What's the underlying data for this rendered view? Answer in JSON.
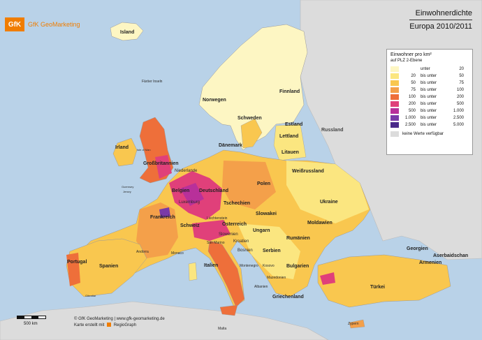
{
  "logo": {
    "mark": "GfK",
    "name": "GfK GeoMarketing"
  },
  "title": {
    "line1": "Einwohnerdichte",
    "line2": "Europa 2010/2011"
  },
  "legend": {
    "title": "Einwohner pro km²",
    "subtitle": "auf PLZ 2-Ebene",
    "classes": [
      {
        "from": "",
        "rel": "unter",
        "to": "20",
        "color": "#fdf6c3"
      },
      {
        "from": "20",
        "rel": "bis unter",
        "to": "50",
        "color": "#fbe680"
      },
      {
        "from": "50",
        "rel": "bis unter",
        "to": "75",
        "color": "#f9c74f"
      },
      {
        "from": "75",
        "rel": "bis unter",
        "to": "100",
        "color": "#f4a04a"
      },
      {
        "from": "100",
        "rel": "bis unter",
        "to": "200",
        "color": "#ee6f3a"
      },
      {
        "from": "200",
        "rel": "bis unter",
        "to": "500",
        "color": "#e0407a"
      },
      {
        "from": "500",
        "rel": "bis unter",
        "to": "1.000",
        "color": "#b8309a"
      },
      {
        "from": "1.000",
        "rel": "bis unter",
        "to": "2.500",
        "color": "#7a3aa8"
      },
      {
        "from": "2.500",
        "rel": "bis unter",
        "to": "5.000",
        "color": "#4b2a8a"
      }
    ],
    "no_data": "keine Werte verfügbar"
  },
  "labels": {
    "island": "Island",
    "faeroer": "Färöer Inseln",
    "norwegen": "Norwegen",
    "schweden": "Schweden",
    "finnland": "Finnland",
    "estland": "Estland",
    "lettland": "Lettland",
    "litauen": "Litauen",
    "russland": "Russland",
    "daenemark": "Dänemark",
    "irland": "Irland",
    "isle_of_man": "Isle of Man",
    "grossbritannien": "Großbritannien",
    "niederlande": "Niederlande",
    "weissrussland": "Weißrussland",
    "belgien": "Belgien",
    "deutschland": "Deutschland",
    "polen": "Polen",
    "luxemburg": "Luxemburg",
    "tschechien": "Tschechien",
    "slowakei": "Slowakei",
    "ukraine": "Ukraine",
    "guernsey": "Guernsey",
    "jersey": "Jersey",
    "frankreich": "Frankreich",
    "liechtenstein": "Liechtenstein",
    "oesterreich": "Österreich",
    "schweiz": "Schweiz",
    "ungarn": "Ungarn",
    "moldawien": "Moldawien",
    "slowenien": "Slowenien",
    "kroatien": "Kroatien",
    "rumaenien": "Rumänien",
    "san_marino": "San Marino",
    "bosnien": "Bosnien",
    "serbien": "Serbien",
    "andorra": "Andorra",
    "monaco": "Monaco",
    "montenegro": "Montenegro",
    "kosovo": "Kosovo",
    "bulgarien": "Bulgarien",
    "portugal": "Portugal",
    "spanien": "Spanien",
    "italien": "Italien",
    "mazedonien": "Mazedonien",
    "albanien": "Albanien",
    "georgien": "Georgien",
    "aserbaidschan": "Aserbaidschan",
    "armenien": "Armenien",
    "tuerkei": "Türkei",
    "griechenland": "Griechenland",
    "gibraltar": "Gibraltar",
    "malta": "Malta",
    "zypern": "Zypern"
  },
  "scale": {
    "label": "500 km"
  },
  "credits": {
    "line1": "© GfK GeoMarketing  |  www.gfk-geomarketing.de",
    "line2_pre": "Karte erstellt mit",
    "line2_post": "RegioGraph"
  }
}
